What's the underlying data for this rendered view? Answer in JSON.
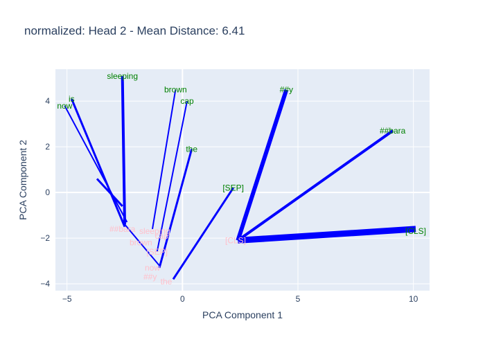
{
  "chart_data": {
    "type": "line",
    "title": "normalized: Head 2 - Mean Distance: 6.41",
    "xlabel": "PCA Component 1",
    "ylabel": "PCA Component 2",
    "xlim": [
      -5.5,
      10.7
    ],
    "ylim": [
      -4.3,
      5.4
    ],
    "x_ticks": [
      -5,
      0,
      5,
      10
    ],
    "y_ticks": [
      -4,
      -2,
      0,
      2,
      4
    ],
    "grid": true,
    "line_color": "#0000ff",
    "source_label_color": "#008000",
    "target_label_color": "#ffc0cb",
    "plot_background": "#e5ecf6",
    "source_tokens": [
      {
        "label": "now",
        "x": -5.1,
        "y": 3.8
      },
      {
        "label": "is",
        "x": -4.8,
        "y": 4.1
      },
      {
        "label": "sleeping",
        "x": -2.6,
        "y": 5.1
      },
      {
        "label": "brown",
        "x": -0.3,
        "y": 4.5
      },
      {
        "label": "cap",
        "x": 0.2,
        "y": 4.0
      },
      {
        "label": "the",
        "x": 0.4,
        "y": 1.9
      },
      {
        "label": "##y",
        "x": 4.5,
        "y": 4.5
      },
      {
        "label": "##bara",
        "x": 9.1,
        "y": 2.7
      },
      {
        "label": "[SEP]",
        "x": 2.2,
        "y": 0.2
      },
      {
        "label": "[CLS]",
        "x": 10.1,
        "y": -1.7
      }
    ],
    "target_tokens": [
      {
        "label": "##bara",
        "x": -2.6,
        "y": -1.6
      },
      {
        "label": "sleeping",
        "x": -1.2,
        "y": -1.7
      },
      {
        "label": "cap",
        "x": -0.9,
        "y": -1.9
      },
      {
        "label": "brown",
        "x": -1.8,
        "y": -2.2
      },
      {
        "label": "[SEP]",
        "x": -1.1,
        "y": -2.6
      },
      {
        "label": "now",
        "x": -1.3,
        "y": -3.3
      },
      {
        "label": "##y",
        "x": -1.4,
        "y": -3.7
      },
      {
        "label": "the",
        "x": -0.7,
        "y": -3.9
      },
      {
        "label": "[CLS]",
        "x": 2.3,
        "y": -2.1
      }
    ],
    "edges": [
      {
        "x": [
          -5.1,
          -2.4
        ],
        "y": [
          3.8,
          -1.3
        ],
        "width": 2
      },
      {
        "x": [
          -4.8,
          -2.5
        ],
        "y": [
          4.1,
          -1.5
        ],
        "width": 3
      },
      {
        "x": [
          -3.7,
          -2.6
        ],
        "y": [
          0.6,
          -0.6
        ],
        "width": 3
      },
      {
        "x": [
          -2.6,
          -2.5
        ],
        "y": [
          5.1,
          -1.4
        ],
        "width": 4
      },
      {
        "x": [
          -0.3,
          -1.3
        ],
        "y": [
          4.5,
          -1.6
        ],
        "width": 2
      },
      {
        "x": [
          0.2,
          -1.1
        ],
        "y": [
          4.0,
          -2.6
        ],
        "width": 2
      },
      {
        "x": [
          0.4,
          -1.0
        ],
        "y": [
          1.9,
          -3.3
        ],
        "width": 3
      },
      {
        "x": [
          -2.5,
          -1.0
        ],
        "y": [
          -1.4,
          -3.2
        ],
        "width": 2
      },
      {
        "x": [
          2.2,
          -0.4
        ],
        "y": [
          0.2,
          -3.8
        ],
        "width": 3
      },
      {
        "x": [
          4.5,
          2.4
        ],
        "y": [
          4.5,
          -2.1
        ],
        "width": 6
      },
      {
        "x": [
          9.1,
          2.4
        ],
        "y": [
          2.7,
          -2.1
        ],
        "width": 4
      },
      {
        "x": [
          10.1,
          2.4
        ],
        "y": [
          -1.6,
          -2.1
        ],
        "width": 9
      }
    ]
  }
}
